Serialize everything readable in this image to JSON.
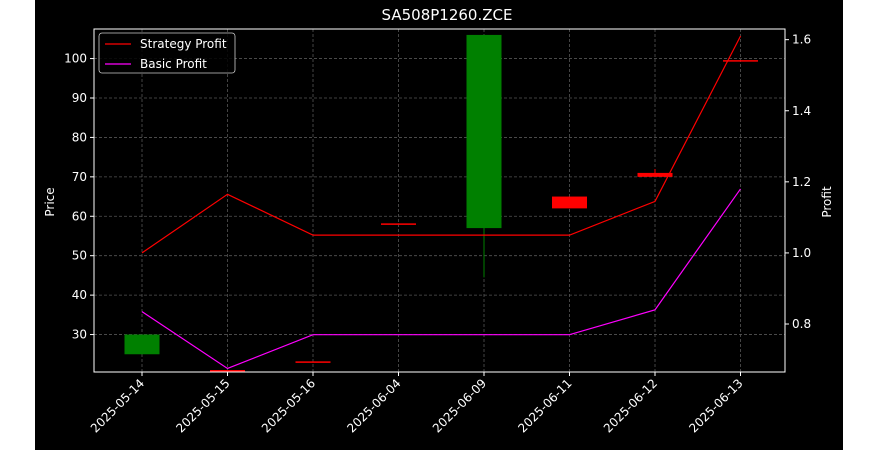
{
  "chart_data": {
    "type": "candlestick",
    "title": "SA508P1260.ZCE",
    "xlabel": "",
    "ylabel": "Price",
    "y2label": "Profit",
    "categories": [
      "2025-05-14",
      "2025-05-15",
      "2025-05-16",
      "2025-06-04",
      "2025-06-09",
      "2025-06-11",
      "2025-06-12",
      "2025-06-13"
    ],
    "candles": [
      {
        "open": 30.0,
        "high": 30.0,
        "low": 25.0,
        "close": 25.0,
        "color": "#008000"
      },
      {
        "open": 21.0,
        "high": 21.0,
        "low": 20.9,
        "close": 20.9,
        "color": "#ff0000"
      },
      {
        "open": 23.2,
        "high": 23.2,
        "low": 23.0,
        "close": 23.0,
        "color": "#ff0000"
      },
      {
        "open": 58.2,
        "high": 58.2,
        "low": 58.0,
        "close": 58.0,
        "color": "#ff0000"
      },
      {
        "open": 106.0,
        "high": 106.0,
        "low": 44.5,
        "close": 57.0,
        "color": "#008000"
      },
      {
        "open": 62.0,
        "high": 65.0,
        "low": 62.0,
        "close": 65.0,
        "color": "#ff0000"
      },
      {
        "open": 70.0,
        "high": 72.0,
        "low": 70.0,
        "close": 71.0,
        "color": "#ff0000"
      },
      {
        "open": 99.3,
        "high": 99.6,
        "low": 99.3,
        "close": 99.6,
        "color": "#ff0000"
      }
    ],
    "series": [
      {
        "name": "Strategy Profit",
        "axis": "right",
        "color": "#ff0000",
        "values": [
          1.0,
          1.165,
          1.05,
          1.05,
          1.05,
          1.05,
          1.145,
          1.61
        ]
      },
      {
        "name": "Basic Profit",
        "axis": "right",
        "color": "#ff00ff",
        "values": [
          0.835,
          0.675,
          0.77,
          0.77,
          0.77,
          0.77,
          0.84,
          1.18
        ]
      }
    ],
    "ylim": [
      20.5,
      107.5
    ],
    "y2lim": [
      0.665,
      1.63
    ],
    "yticks": [
      30,
      40,
      50,
      60,
      70,
      80,
      90,
      100
    ],
    "y2ticks": [
      0.8,
      1.0,
      1.2,
      1.4,
      1.6
    ],
    "y2tick_labels": [
      "0.8",
      "1.0",
      "1.2",
      "1.4",
      "1.6"
    ],
    "grid": true,
    "legend_position": "top-left",
    "background": "#000000",
    "grid_color": "#555555"
  }
}
